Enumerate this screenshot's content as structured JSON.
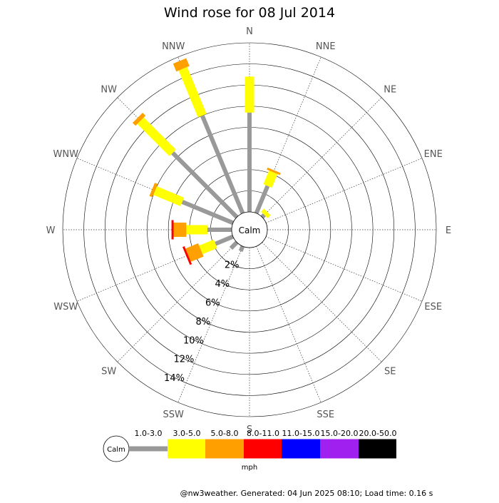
{
  "chart_data": {
    "type": "wind-rose",
    "title": "Wind rose for 08 Jul 2014",
    "directions": [
      "N",
      "NNE",
      "NE",
      "ENE",
      "E",
      "ESE",
      "SE",
      "SSE",
      "S",
      "SSW",
      "SW",
      "WSW",
      "W",
      "WNW",
      "NW",
      "NNW"
    ],
    "radial_ticks": [
      "2%",
      "4%",
      "6%",
      "8%",
      "10%",
      "12%",
      "14%"
    ],
    "radial_max_percent": 16,
    "calm_label": "Calm",
    "speed_bins": [
      {
        "label": "1.0-3.0",
        "color": "#999999"
      },
      {
        "label": "3.0-5.0",
        "color": "#ffff00"
      },
      {
        "label": "5.0-8.0",
        "color": "#ff9f00"
      },
      {
        "label": "8.0-11.0",
        "color": "#ff0000"
      },
      {
        "label": "11.0-15.0",
        "color": "#0000ff"
      },
      {
        "label": "15.0-20.0",
        "color": "#a020f0"
      },
      {
        "label": "20.0-50.0",
        "color": "#000000"
      }
    ],
    "unit": "mph",
    "series": [
      {
        "direction": "N",
        "values": [
          9.4,
          3.4,
          0,
          0,
          0,
          0,
          0
        ]
      },
      {
        "direction": "NNE",
        "values": [
          2.8,
          1.4,
          0.2,
          0,
          0,
          0,
          0
        ]
      },
      {
        "direction": "NE",
        "values": [
          0.3,
          0.4,
          0,
          0,
          0,
          0,
          0
        ]
      },
      {
        "direction": "ENE",
        "values": [
          0,
          0,
          0,
          0,
          0,
          0,
          0
        ]
      },
      {
        "direction": "E",
        "values": [
          0,
          0,
          0,
          0,
          0,
          0,
          0
        ]
      },
      {
        "direction": "ESE",
        "values": [
          0,
          0,
          0,
          0,
          0,
          0,
          0
        ]
      },
      {
        "direction": "SE",
        "values": [
          0,
          0,
          0,
          0,
          0,
          0,
          0
        ]
      },
      {
        "direction": "SSE",
        "values": [
          0,
          0,
          0,
          0,
          0,
          0,
          0
        ]
      },
      {
        "direction": "S",
        "values": [
          0,
          0,
          0,
          0,
          0,
          0,
          0
        ]
      },
      {
        "direction": "SSW",
        "values": [
          0.5,
          0,
          0,
          0,
          0,
          0,
          0
        ]
      },
      {
        "direction": "SW",
        "values": [
          0.8,
          0,
          0,
          0,
          0,
          0,
          0
        ]
      },
      {
        "direction": "WSW",
        "values": [
          1.8,
          1.5,
          1.3,
          0.2,
          0,
          0,
          0
        ]
      },
      {
        "direction": "W",
        "values": [
          2.3,
          2.0,
          1.2,
          0.2,
          0,
          0,
          0
        ]
      },
      {
        "direction": "WNW",
        "values": [
          5.2,
          2.8,
          0.3,
          0,
          0,
          0,
          0
        ]
      },
      {
        "direction": "NW",
        "values": [
          8.6,
          4.3,
          0.4,
          0,
          0,
          0,
          0
        ]
      },
      {
        "direction": "NNW",
        "values": [
          10.0,
          4.8,
          0.8,
          0,
          0,
          0,
          0
        ]
      }
    ]
  },
  "footer": "@nw3weather. Generated: 04 Jun 2025 08:10; Load time: 0.16 s"
}
